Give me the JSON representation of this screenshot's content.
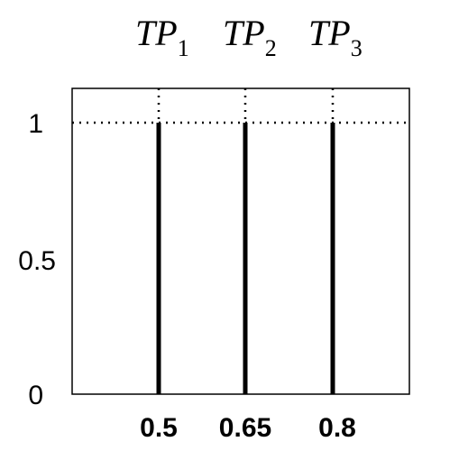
{
  "diagram": {
    "labels": [
      {
        "base": "TP",
        "sub": "1"
      },
      {
        "base": "TP",
        "sub": "2"
      },
      {
        "base": "TP",
        "sub": "3"
      }
    ],
    "y_ticks": [
      {
        "label": "1",
        "value": 1
      },
      {
        "label": "0.5",
        "value": 0.5
      },
      {
        "label": "0",
        "value": 0
      }
    ],
    "x_ticks": [
      {
        "label": "0.5",
        "value": 0.5
      },
      {
        "label": "0.65",
        "value": 0.65
      },
      {
        "label": "0.8",
        "value": 0.8
      }
    ],
    "lines": [
      {
        "x": 0.5,
        "y_from": 0,
        "y_to": 1
      },
      {
        "x": 0.65,
        "y_from": 0,
        "y_to": 1
      },
      {
        "x": 0.8,
        "y_from": 0,
        "y_to": 1
      }
    ],
    "reference_line_y": 1
  }
}
